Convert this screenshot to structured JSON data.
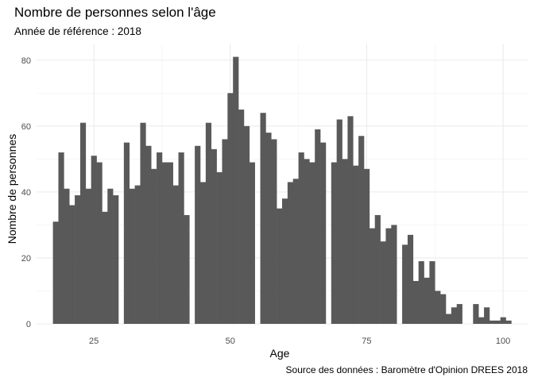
{
  "chart_data": {
    "type": "bar",
    "title": "Nombre de personnes selon l'âge",
    "subtitle": "Année de référence : 2018",
    "caption": "Source des données : Baromètre d'Opinion DREES 2018",
    "xlabel": "Age",
    "ylabel": "Nombre de personnes",
    "xlim": [
      14.5,
      104.5
    ],
    "ylim": [
      0,
      85
    ],
    "xticks": [
      25,
      50,
      75,
      100
    ],
    "yticks": [
      0,
      20,
      40,
      60,
      80
    ],
    "grid": true,
    "bar_color": "#595959",
    "ages": [
      18,
      19,
      20,
      21,
      22,
      23,
      24,
      25,
      26,
      27,
      28,
      29,
      30,
      31,
      32,
      33,
      34,
      35,
      36,
      37,
      38,
      39,
      40,
      41,
      42,
      43,
      44,
      45,
      46,
      47,
      48,
      49,
      50,
      51,
      52,
      53,
      54,
      55,
      56,
      57,
      58,
      59,
      60,
      61,
      62,
      63,
      64,
      65,
      66,
      67,
      68,
      69,
      70,
      71,
      72,
      73,
      74,
      75,
      76,
      77,
      78,
      79,
      80,
      81,
      82,
      83,
      84,
      85,
      86,
      87,
      88,
      89,
      90,
      91,
      92,
      93,
      94,
      95,
      96,
      97,
      98,
      99,
      100,
      101
    ],
    "values": [
      31,
      52,
      41,
      36,
      39,
      61,
      41,
      51,
      49,
      34,
      41,
      39,
      0,
      55,
      41,
      42,
      61,
      54,
      47,
      52,
      49,
      49,
      42,
      52,
      33,
      0,
      54,
      43,
      61,
      53,
      46,
      56,
      70,
      81,
      65,
      60,
      49,
      0,
      64,
      58,
      56,
      35,
      38,
      43,
      44,
      52,
      50,
      49,
      59,
      55,
      0,
      49,
      62,
      50,
      63,
      48,
      57,
      47,
      29,
      33,
      25,
      29,
      30,
      0,
      24,
      27,
      13,
      19,
      14,
      19,
      10,
      9,
      3,
      5,
      6,
      0,
      0,
      6,
      2,
      5,
      1,
      1,
      2,
      1,
      0,
      1,
      0,
      0,
      1,
      0
    ]
  }
}
